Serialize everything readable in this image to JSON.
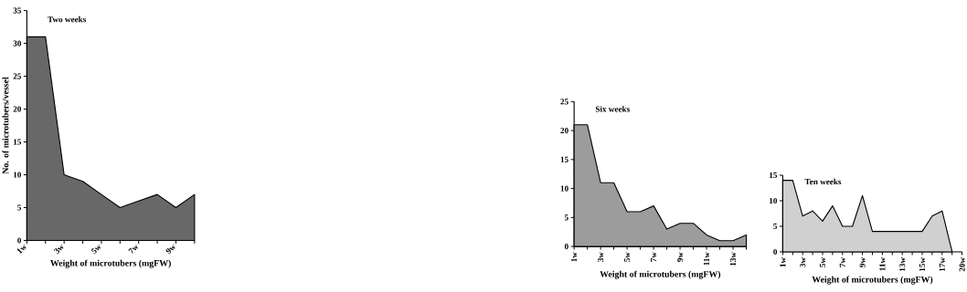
{
  "chart_data": [
    {
      "type": "area",
      "title": "Two weeks",
      "xlabel": "Weight of microtubers (mgFW)",
      "ylabel": "No. of microtubers/vessel",
      "categories": [
        "1w",
        null,
        "3w",
        null,
        "5w",
        null,
        "7w",
        null,
        "9w",
        null
      ],
      "values": [
        31,
        31,
        10,
        9,
        7,
        5,
        6,
        7,
        5,
        7
      ],
      "color": "#686868",
      "ylim": [
        0,
        35
      ],
      "yticks": [
        0,
        5,
        10,
        15,
        20,
        25,
        30,
        35
      ]
    },
    {
      "type": "area",
      "title": "Six weeks",
      "xlabel": "Weight of microtubers (mgFW)",
      "categories": [
        "1w",
        null,
        "3w",
        null,
        "5w",
        null,
        "7w",
        null,
        "9w",
        null,
        "11w",
        null,
        "13w",
        null
      ],
      "values": [
        21,
        21,
        11,
        11,
        6,
        6,
        7,
        3,
        4,
        4,
        2,
        1,
        1,
        2
      ],
      "color": "#9c9c9c",
      "ylim": [
        0,
        25
      ],
      "yticks": [
        0,
        5,
        10,
        15,
        20,
        25
      ]
    },
    {
      "type": "area",
      "title": "Ten weeks",
      "xlabel": "Weight of microtubers (mgFW)",
      "categories": [
        "1w",
        null,
        "3w",
        null,
        "5w",
        null,
        "7w",
        null,
        "9w",
        null,
        "11w",
        null,
        "13w",
        null,
        "15w",
        null,
        "17w",
        null,
        "20w"
      ],
      "values": [
        14,
        14,
        7,
        8,
        6,
        9,
        5,
        5,
        11,
        4,
        4,
        4,
        4,
        4,
        4,
        7,
        8,
        0,
        null
      ],
      "color": "#d0d0d0",
      "ylim": [
        0,
        15
      ],
      "yticks": [
        0,
        5,
        10,
        15
      ]
    }
  ]
}
